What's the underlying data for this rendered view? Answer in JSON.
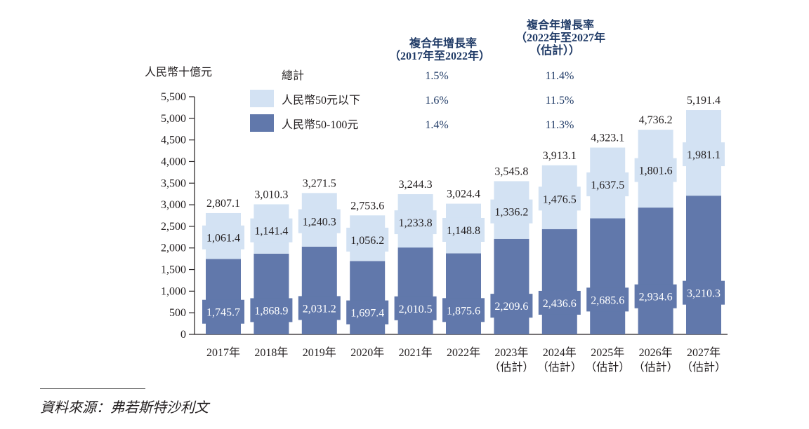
{
  "chart_data": {
    "type": "bar",
    "stacked": true,
    "unit_label": "人民幣十億元",
    "categories": [
      {
        "year": "2017年",
        "note": ""
      },
      {
        "year": "2018年",
        "note": ""
      },
      {
        "year": "2019年",
        "note": ""
      },
      {
        "year": "2020年",
        "note": ""
      },
      {
        "year": "2021年",
        "note": ""
      },
      {
        "year": "2022年",
        "note": ""
      },
      {
        "year": "2023年",
        "note": "（估計）"
      },
      {
        "year": "2024年",
        "note": "（估計）"
      },
      {
        "year": "2025年",
        "note": "（估計）"
      },
      {
        "year": "2026年",
        "note": "（估計）"
      },
      {
        "year": "2027年",
        "note": "（估計）"
      }
    ],
    "series": [
      {
        "name": "人民幣50-100元",
        "color": "#6178ab",
        "values": [
          1745.7,
          1868.9,
          2031.2,
          1697.4,
          2010.5,
          1875.6,
          2209.6,
          2436.6,
          2685.6,
          2934.6,
          3210.3
        ],
        "labels": [
          "1,745.7",
          "1,868.9",
          "2,031.2",
          "1,697.4",
          "2,010.5",
          "1,875.6",
          "2,209.6",
          "2,436.6",
          "2,685.6",
          "2,934.6",
          "3,210.3"
        ]
      },
      {
        "name": "人民幣50元以下",
        "color": "#d3e2f3",
        "values": [
          1061.4,
          1141.4,
          1240.3,
          1056.2,
          1233.8,
          1148.8,
          1336.2,
          1476.5,
          1637.5,
          1801.6,
          1981.1
        ],
        "labels": [
          "1,061.4",
          "1,141.4",
          "1,240.3",
          "1,056.2",
          "1,233.8",
          "1,148.8",
          "1,336.2",
          "1,476.5",
          "1,637.5",
          "1,801.6",
          "1,981.1"
        ]
      }
    ],
    "totals": [
      2807.1,
      3010.3,
      3271.5,
      2753.6,
      3244.3,
      3024.4,
      3545.8,
      3913.1,
      4323.1,
      4736.2,
      5191.4
    ],
    "total_labels": [
      "2,807.1",
      "3,010.3",
      "3,271.5",
      "2,753.6",
      "3,244.3",
      "3,024.4",
      "3,545.8",
      "3,913.1",
      "4,323.1",
      "4,736.2",
      "5,191.4"
    ],
    "ylim": [
      0,
      5500
    ],
    "yticks": [
      0,
      500,
      1000,
      1500,
      2000,
      2500,
      3000,
      3500,
      4000,
      4500,
      5000,
      5500
    ],
    "ytick_labels": [
      "0",
      "500",
      "1,000",
      "1,500",
      "2,000",
      "2,500",
      "3,000",
      "3,500",
      "4,000",
      "4,500",
      "5,000",
      "5,500"
    ],
    "grid": false,
    "legend": {
      "placement": "top-left",
      "total_label": "總計",
      "items": [
        {
          "label": "人民幣50元以下",
          "color": "#d3e2f3"
        },
        {
          "label": "人民幣50-100元",
          "color": "#6178ab"
        }
      ]
    },
    "cagr_table": {
      "columns": [
        {
          "title_lines": [
            "複合年增長率",
            "（2017年至2022年）"
          ],
          "values": [
            "1.5%",
            "1.6%",
            "1.4%"
          ]
        },
        {
          "title_lines": [
            "複合年增長率",
            "（2022年至2027年",
            "（估計））"
          ],
          "values": [
            "11.4%",
            "11.5%",
            "11.3%"
          ]
        }
      ],
      "row_labels": [
        "總計",
        "人民幣50元以下",
        "人民幣50-100元"
      ]
    }
  },
  "source": "資料來源：弗若斯特沙利文"
}
